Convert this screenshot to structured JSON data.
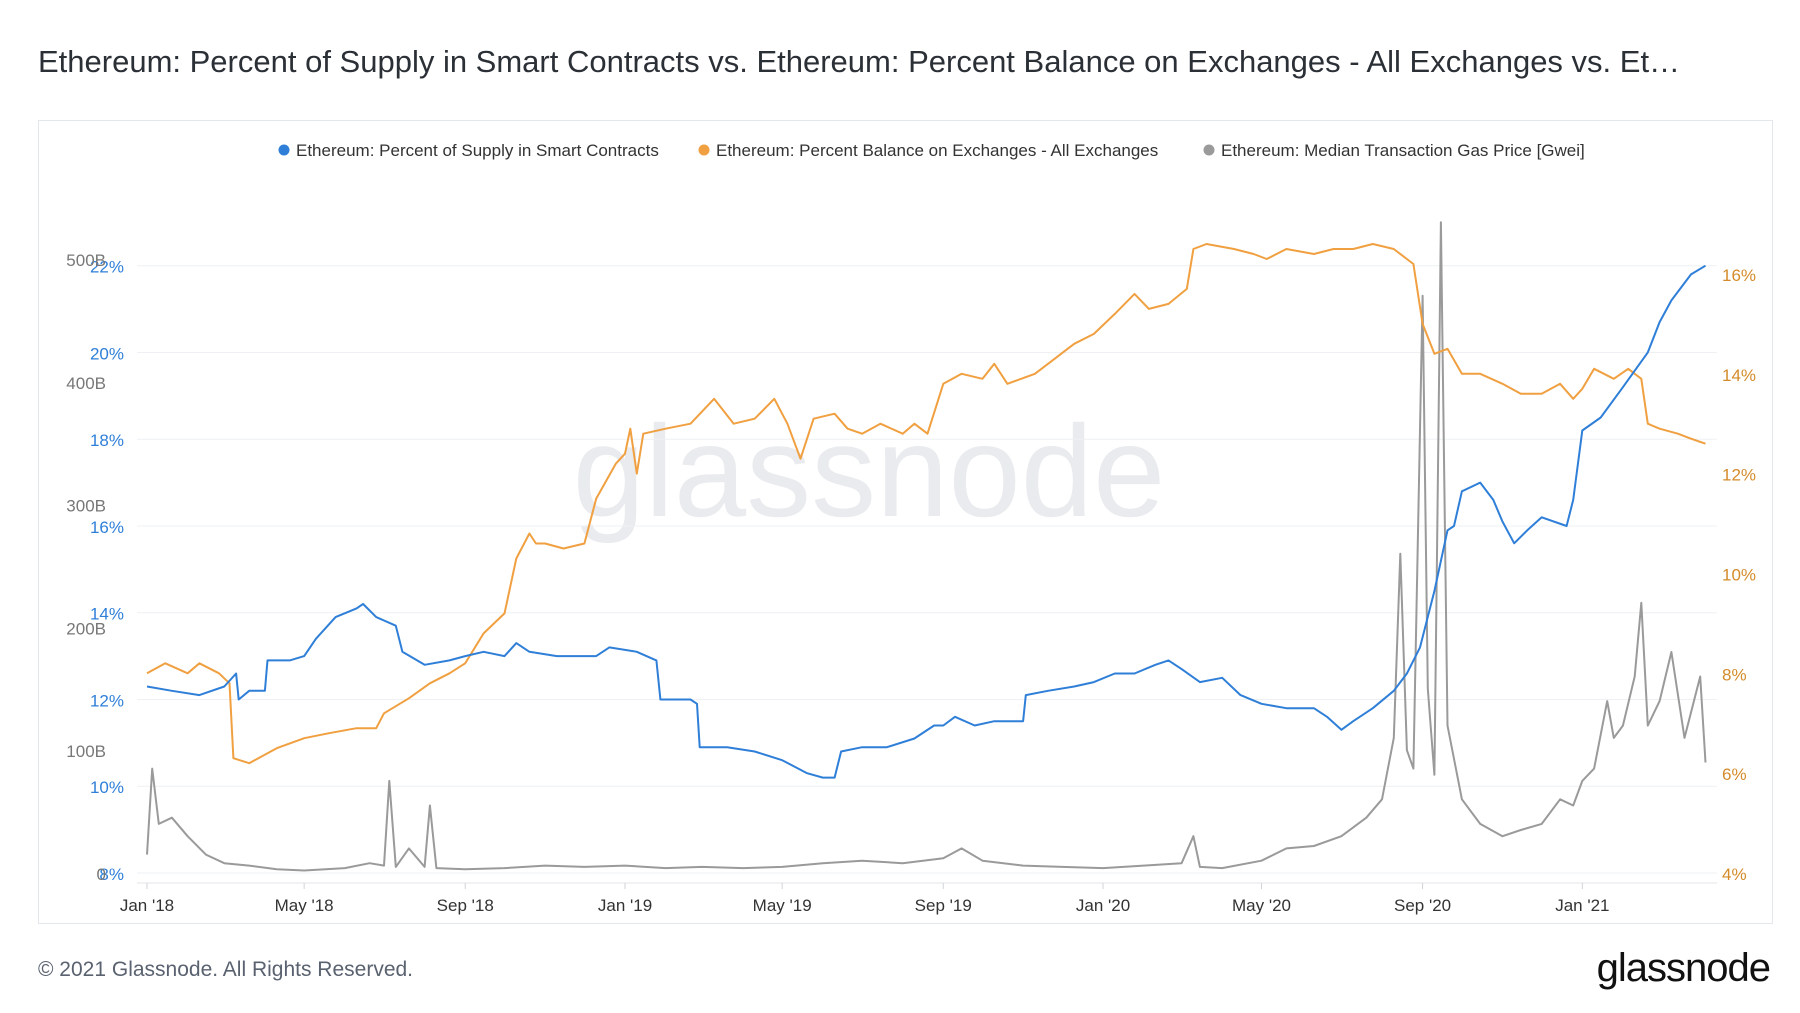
{
  "title": "Ethereum: Percent of Supply in Smart Contracts vs. Ethereum: Percent Balance on Exchanges - All Exchanges vs. Et…",
  "footer": {
    "copyright": "© 2021 Glassnode. All Rights Reserved.",
    "logo": "glassnode"
  },
  "watermark": "glassnode",
  "chart_data": {
    "type": "line",
    "grid": true,
    "legend_position": "top-right",
    "x_ticks": [
      "Jan '18",
      "May '18",
      "Sep '18",
      "Jan '19",
      "May '19",
      "Sep '19",
      "Jan '20",
      "May '20",
      "Sep '20",
      "Jan '21"
    ],
    "x_range": [
      "2018-01-01",
      "2021-04-10"
    ],
    "axes": {
      "left_pct": {
        "ticks": [
          "8%",
          "10%",
          "12%",
          "14%",
          "16%",
          "18%",
          "20%",
          "22%"
        ],
        "range": [
          8,
          22.5
        ],
        "color": "#2f7fd8"
      },
      "left_gas": {
        "ticks": [
          "0",
          "100B",
          "200B",
          "300B",
          "400B",
          "500B"
        ],
        "range": [
          0,
          500
        ],
        "color": "#777777"
      },
      "right_pct": {
        "ticks": [
          "4%",
          "6%",
          "8%",
          "10%",
          "12%",
          "14%",
          "16%"
        ],
        "range": [
          4,
          16.6
        ],
        "color": "#d48b2a"
      }
    },
    "series": [
      {
        "name": "Ethereum: Percent of Supply in Smart Contracts",
        "color": "#2f7fd8",
        "axis": "left_pct",
        "points": [
          [
            "2018-01-01",
            12.3
          ],
          [
            "2018-01-20",
            12.2
          ],
          [
            "2018-02-10",
            12.1
          ],
          [
            "2018-03-01",
            12.3
          ],
          [
            "2018-03-10",
            12.6
          ],
          [
            "2018-03-12",
            12.0
          ],
          [
            "2018-03-20",
            12.2
          ],
          [
            "2018-04-01",
            12.2
          ],
          [
            "2018-04-03",
            12.9
          ],
          [
            "2018-04-20",
            12.9
          ],
          [
            "2018-05-01",
            13.0
          ],
          [
            "2018-05-10",
            13.4
          ],
          [
            "2018-05-25",
            13.9
          ],
          [
            "2018-06-10",
            14.1
          ],
          [
            "2018-06-15",
            14.2
          ],
          [
            "2018-06-25",
            13.9
          ],
          [
            "2018-07-10",
            13.7
          ],
          [
            "2018-07-15",
            13.1
          ],
          [
            "2018-08-01",
            12.8
          ],
          [
            "2018-08-20",
            12.9
          ],
          [
            "2018-09-01",
            13.0
          ],
          [
            "2018-09-15",
            13.1
          ],
          [
            "2018-10-01",
            13.0
          ],
          [
            "2018-10-10",
            13.3
          ],
          [
            "2018-10-20",
            13.1
          ],
          [
            "2018-11-10",
            13.0
          ],
          [
            "2018-12-10",
            13.0
          ],
          [
            "2018-12-20",
            13.2
          ],
          [
            "2019-01-10",
            13.1
          ],
          [
            "2019-01-25",
            12.9
          ],
          [
            "2019-01-28",
            12.0
          ],
          [
            "2019-02-20",
            12.0
          ],
          [
            "2019-02-25",
            11.9
          ],
          [
            "2019-02-27",
            10.9
          ],
          [
            "2019-03-20",
            10.9
          ],
          [
            "2019-04-10",
            10.8
          ],
          [
            "2019-05-01",
            10.6
          ],
          [
            "2019-05-20",
            10.3
          ],
          [
            "2019-06-01",
            10.2
          ],
          [
            "2019-06-10",
            10.2
          ],
          [
            "2019-06-15",
            10.8
          ],
          [
            "2019-07-01",
            10.9
          ],
          [
            "2019-07-20",
            10.9
          ],
          [
            "2019-08-10",
            11.1
          ],
          [
            "2019-08-25",
            11.4
          ],
          [
            "2019-09-01",
            11.4
          ],
          [
            "2019-09-10",
            11.6
          ],
          [
            "2019-09-25",
            11.4
          ],
          [
            "2019-10-10",
            11.5
          ],
          [
            "2019-11-01",
            11.5
          ],
          [
            "2019-11-03",
            12.1
          ],
          [
            "2019-11-20",
            12.2
          ],
          [
            "2019-12-10",
            12.3
          ],
          [
            "2019-12-25",
            12.4
          ],
          [
            "2020-01-10",
            12.6
          ],
          [
            "2020-01-25",
            12.6
          ],
          [
            "2020-02-10",
            12.8
          ],
          [
            "2020-02-20",
            12.9
          ],
          [
            "2020-03-01",
            12.7
          ],
          [
            "2020-03-15",
            12.4
          ],
          [
            "2020-04-01",
            12.5
          ],
          [
            "2020-04-15",
            12.1
          ],
          [
            "2020-05-01",
            11.9
          ],
          [
            "2020-05-20",
            11.8
          ],
          [
            "2020-06-10",
            11.8
          ],
          [
            "2020-06-20",
            11.6
          ],
          [
            "2020-07-01",
            11.3
          ],
          [
            "2020-07-10",
            11.5
          ],
          [
            "2020-07-25",
            11.8
          ],
          [
            "2020-08-10",
            12.2
          ],
          [
            "2020-08-20",
            12.6
          ],
          [
            "2020-08-30",
            13.2
          ],
          [
            "2020-09-10",
            14.5
          ],
          [
            "2020-09-20",
            15.9
          ],
          [
            "2020-09-25",
            16.0
          ],
          [
            "2020-10-01",
            16.8
          ],
          [
            "2020-10-15",
            17.0
          ],
          [
            "2020-10-25",
            16.6
          ],
          [
            "2020-11-01",
            16.1
          ],
          [
            "2020-11-10",
            15.6
          ],
          [
            "2020-11-20",
            15.9
          ],
          [
            "2020-12-01",
            16.2
          ],
          [
            "2020-12-20",
            16.0
          ],
          [
            "2020-12-25",
            16.6
          ],
          [
            "2021-01-01",
            18.2
          ],
          [
            "2021-01-15",
            18.5
          ],
          [
            "2021-02-01",
            19.2
          ],
          [
            "2021-02-20",
            20.0
          ],
          [
            "2021-03-01",
            20.7
          ],
          [
            "2021-03-10",
            21.2
          ],
          [
            "2021-03-25",
            21.8
          ],
          [
            "2021-04-05",
            22.0
          ]
        ]
      },
      {
        "name": "Ethereum: Percent Balance on Exchanges - All Exchanges",
        "color": "#f0a040",
        "axis": "right_pct",
        "points": [
          [
            "2018-01-01",
            8.0
          ],
          [
            "2018-01-15",
            8.2
          ],
          [
            "2018-02-01",
            8.0
          ],
          [
            "2018-02-10",
            8.2
          ],
          [
            "2018-02-25",
            8.0
          ],
          [
            "2018-03-05",
            7.8
          ],
          [
            "2018-03-08",
            6.3
          ],
          [
            "2018-03-20",
            6.2
          ],
          [
            "2018-04-10",
            6.5
          ],
          [
            "2018-05-01",
            6.7
          ],
          [
            "2018-05-20",
            6.8
          ],
          [
            "2018-06-10",
            6.9
          ],
          [
            "2018-06-25",
            6.9
          ],
          [
            "2018-07-01",
            7.2
          ],
          [
            "2018-07-20",
            7.5
          ],
          [
            "2018-08-05",
            7.8
          ],
          [
            "2018-08-20",
            8.0
          ],
          [
            "2018-09-01",
            8.2
          ],
          [
            "2018-09-15",
            8.8
          ],
          [
            "2018-10-01",
            9.2
          ],
          [
            "2018-10-10",
            10.3
          ],
          [
            "2018-10-20",
            10.8
          ],
          [
            "2018-10-25",
            10.6
          ],
          [
            "2018-11-01",
            10.6
          ],
          [
            "2018-11-15",
            10.5
          ],
          [
            "2018-12-01",
            10.6
          ],
          [
            "2018-12-10",
            11.5
          ],
          [
            "2018-12-25",
            12.2
          ],
          [
            "2019-01-01",
            12.4
          ],
          [
            "2019-01-05",
            12.9
          ],
          [
            "2019-01-10",
            12.0
          ],
          [
            "2019-01-15",
            12.8
          ],
          [
            "2019-02-01",
            12.9
          ],
          [
            "2019-02-20",
            13.0
          ],
          [
            "2019-03-10",
            13.5
          ],
          [
            "2019-03-25",
            13.0
          ],
          [
            "2019-04-10",
            13.1
          ],
          [
            "2019-04-25",
            13.5
          ],
          [
            "2019-05-05",
            13.0
          ],
          [
            "2019-05-15",
            12.3
          ],
          [
            "2019-05-25",
            13.1
          ],
          [
            "2019-06-10",
            13.2
          ],
          [
            "2019-06-20",
            12.9
          ],
          [
            "2019-07-01",
            12.8
          ],
          [
            "2019-07-15",
            13.0
          ],
          [
            "2019-08-01",
            12.8
          ],
          [
            "2019-08-10",
            13.0
          ],
          [
            "2019-08-20",
            12.8
          ],
          [
            "2019-09-01",
            13.8
          ],
          [
            "2019-09-15",
            14.0
          ],
          [
            "2019-10-01",
            13.9
          ],
          [
            "2019-10-10",
            14.2
          ],
          [
            "2019-10-20",
            13.8
          ],
          [
            "2019-11-10",
            14.0
          ],
          [
            "2019-11-25",
            14.3
          ],
          [
            "2019-12-10",
            14.6
          ],
          [
            "2019-12-25",
            14.8
          ],
          [
            "2020-01-10",
            15.2
          ],
          [
            "2020-01-25",
            15.6
          ],
          [
            "2020-02-05",
            15.3
          ],
          [
            "2020-02-20",
            15.4
          ],
          [
            "2020-03-05",
            15.7
          ],
          [
            "2020-03-10",
            16.5
          ],
          [
            "2020-03-20",
            16.6
          ],
          [
            "2020-04-10",
            16.5
          ],
          [
            "2020-04-25",
            16.4
          ],
          [
            "2020-05-05",
            16.3
          ],
          [
            "2020-05-20",
            16.5
          ],
          [
            "2020-06-10",
            16.4
          ],
          [
            "2020-06-25",
            16.5
          ],
          [
            "2020-07-10",
            16.5
          ],
          [
            "2020-07-25",
            16.6
          ],
          [
            "2020-08-10",
            16.5
          ],
          [
            "2020-08-25",
            16.2
          ],
          [
            "2020-09-01",
            15.0
          ],
          [
            "2020-09-10",
            14.4
          ],
          [
            "2020-09-20",
            14.5
          ],
          [
            "2020-10-01",
            14.0
          ],
          [
            "2020-10-15",
            14.0
          ],
          [
            "2020-11-01",
            13.8
          ],
          [
            "2020-11-15",
            13.6
          ],
          [
            "2020-12-01",
            13.6
          ],
          [
            "2020-12-15",
            13.8
          ],
          [
            "2020-12-25",
            13.5
          ],
          [
            "2021-01-01",
            13.7
          ],
          [
            "2021-01-10",
            14.1
          ],
          [
            "2021-01-25",
            13.9
          ],
          [
            "2021-02-05",
            14.1
          ],
          [
            "2021-02-15",
            13.9
          ],
          [
            "2021-02-20",
            13.0
          ],
          [
            "2021-03-01",
            12.9
          ],
          [
            "2021-03-15",
            12.8
          ],
          [
            "2021-03-25",
            12.7
          ],
          [
            "2021-04-05",
            12.6
          ]
        ]
      },
      {
        "name": "Ethereum: Median Transaction Gas Price [Gwei]",
        "color": "#9a9a9a",
        "axis": "left_gas",
        "points": [
          [
            "2018-01-01",
            15
          ],
          [
            "2018-01-05",
            85
          ],
          [
            "2018-01-10",
            40
          ],
          [
            "2018-01-20",
            45
          ],
          [
            "2018-02-01",
            30
          ],
          [
            "2018-02-15",
            15
          ],
          [
            "2018-03-01",
            8
          ],
          [
            "2018-03-20",
            6
          ],
          [
            "2018-04-10",
            3
          ],
          [
            "2018-05-01",
            2
          ],
          [
            "2018-06-01",
            4
          ],
          [
            "2018-06-20",
            8
          ],
          [
            "2018-07-01",
            6
          ],
          [
            "2018-07-05",
            75
          ],
          [
            "2018-07-10",
            5
          ],
          [
            "2018-07-20",
            20
          ],
          [
            "2018-08-01",
            5
          ],
          [
            "2018-08-05",
            55
          ],
          [
            "2018-08-10",
            4
          ],
          [
            "2018-09-01",
            3
          ],
          [
            "2018-10-01",
            4
          ],
          [
            "2018-11-01",
            6
          ],
          [
            "2018-12-01",
            5
          ],
          [
            "2019-01-01",
            6
          ],
          [
            "2019-02-01",
            4
          ],
          [
            "2019-03-01",
            5
          ],
          [
            "2019-04-01",
            4
          ],
          [
            "2019-05-01",
            5
          ],
          [
            "2019-06-01",
            8
          ],
          [
            "2019-07-01",
            10
          ],
          [
            "2019-08-01",
            8
          ],
          [
            "2019-09-01",
            12
          ],
          [
            "2019-09-15",
            20
          ],
          [
            "2019-10-01",
            10
          ],
          [
            "2019-11-01",
            6
          ],
          [
            "2019-12-01",
            5
          ],
          [
            "2020-01-01",
            4
          ],
          [
            "2020-02-01",
            6
          ],
          [
            "2020-03-01",
            8
          ],
          [
            "2020-03-10",
            30
          ],
          [
            "2020-03-15",
            5
          ],
          [
            "2020-04-01",
            4
          ],
          [
            "2020-05-01",
            10
          ],
          [
            "2020-05-20",
            20
          ],
          [
            "2020-06-10",
            22
          ],
          [
            "2020-07-01",
            30
          ],
          [
            "2020-07-20",
            45
          ],
          [
            "2020-08-01",
            60
          ],
          [
            "2020-08-10",
            110
          ],
          [
            "2020-08-15",
            260
          ],
          [
            "2020-08-20",
            100
          ],
          [
            "2020-08-25",
            85
          ],
          [
            "2020-09-01",
            470
          ],
          [
            "2020-09-05",
            150
          ],
          [
            "2020-09-10",
            80
          ],
          [
            "2020-09-15",
            530
          ],
          [
            "2020-09-20",
            120
          ],
          [
            "2020-10-01",
            60
          ],
          [
            "2020-10-15",
            40
          ],
          [
            "2020-11-01",
            30
          ],
          [
            "2020-11-15",
            35
          ],
          [
            "2020-12-01",
            40
          ],
          [
            "2020-12-15",
            60
          ],
          [
            "2020-12-25",
            55
          ],
          [
            "2021-01-01",
            75
          ],
          [
            "2021-01-10",
            85
          ],
          [
            "2021-01-20",
            140
          ],
          [
            "2021-01-25",
            110
          ],
          [
            "2021-02-01",
            120
          ],
          [
            "2021-02-10",
            160
          ],
          [
            "2021-02-15",
            220
          ],
          [
            "2021-02-20",
            120
          ],
          [
            "2021-03-01",
            140
          ],
          [
            "2021-03-10",
            180
          ],
          [
            "2021-03-20",
            110
          ],
          [
            "2021-04-01",
            160
          ],
          [
            "2021-04-05",
            90
          ]
        ]
      }
    ]
  }
}
